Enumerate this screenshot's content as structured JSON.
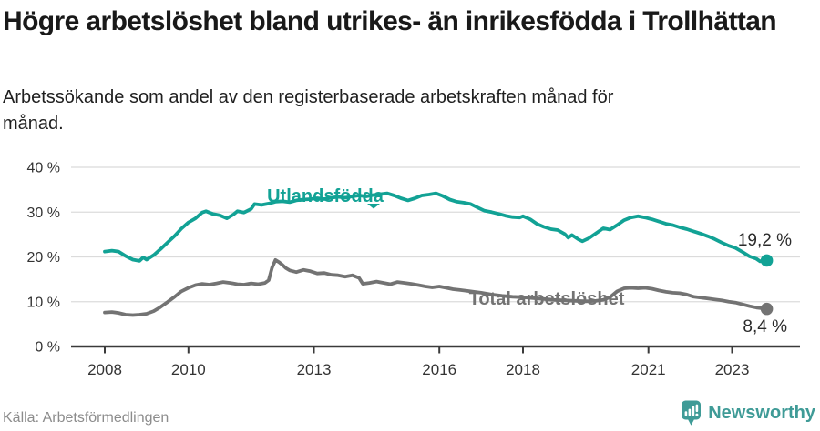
{
  "header": {
    "title": "Högre arbetslöshet bland utrikes- än inrikesfödda i Trollhättan",
    "subtitle_line1": "Arbetssökande som andel av den registerbaserade arbetskraften månad för",
    "subtitle_line2": "månad."
  },
  "footer": {
    "source": "Källa: Arbetsförmedlingen",
    "brand": "Newsworthy"
  },
  "colors": {
    "accent_teal": "#12a295",
    "series_gray": "#737373",
    "grid": "#dbdbdb",
    "axis": "#3a3a3a",
    "tick_text": "#333333",
    "value_text": "#2b2b2b",
    "muted_text": "#8c8c8c",
    "brand_teal": "#3f9b97"
  },
  "chart_data": {
    "type": "line",
    "title": "Högre arbetslöshet bland utrikes- än inrikesfödda i Trollhättan",
    "subtitle": "Arbetssökande som andel av den registerbaserade arbetskraften månad för månad.",
    "xlabel": "",
    "ylabel": "",
    "grid": "horizontal",
    "legend_position": "inline-labels",
    "x_axis": {
      "ticks": [
        2008,
        2010,
        2013,
        2016,
        2018,
        2021,
        2023
      ],
      "tick_labels": [
        "2008",
        "2010",
        "2013",
        "2016",
        "2018",
        "2021",
        "2023"
      ],
      "range": [
        2007.2,
        2024.6
      ]
    },
    "y_axis": {
      "ticks": [
        0,
        10,
        20,
        30,
        40
      ],
      "tick_labels": [
        "0 %",
        "10 %",
        "20 %",
        "30 %",
        "40 %"
      ],
      "range": [
        0,
        40
      ]
    },
    "series": [
      {
        "name": "Utlandsfödda",
        "color": "#12a295",
        "end_label": "19,2 %",
        "end_value": 19.2,
        "points": [
          [
            2008.0,
            21.2
          ],
          [
            2008.17,
            21.4
          ],
          [
            2008.33,
            21.2
          ],
          [
            2008.5,
            20.2
          ],
          [
            2008.67,
            19.4
          ],
          [
            2008.83,
            19.1
          ],
          [
            2008.92,
            19.9
          ],
          [
            2009.0,
            19.4
          ],
          [
            2009.17,
            20.4
          ],
          [
            2009.33,
            21.7
          ],
          [
            2009.5,
            23.2
          ],
          [
            2009.67,
            24.7
          ],
          [
            2009.83,
            26.3
          ],
          [
            2010.0,
            27.7
          ],
          [
            2010.17,
            28.6
          ],
          [
            2010.33,
            29.9
          ],
          [
            2010.42,
            30.2
          ],
          [
            2010.58,
            29.6
          ],
          [
            2010.75,
            29.3
          ],
          [
            2010.92,
            28.6
          ],
          [
            2011.08,
            29.5
          ],
          [
            2011.17,
            30.2
          ],
          [
            2011.33,
            29.9
          ],
          [
            2011.5,
            30.7
          ],
          [
            2011.58,
            31.8
          ],
          [
            2011.75,
            31.6
          ],
          [
            2011.92,
            31.9
          ],
          [
            2012.08,
            32.3
          ],
          [
            2012.25,
            32.4
          ],
          [
            2012.42,
            32.2
          ],
          [
            2012.58,
            32.6
          ],
          [
            2012.75,
            32.8
          ],
          [
            2012.92,
            32.9
          ],
          [
            2013.08,
            33.1
          ],
          [
            2013.25,
            32.9
          ],
          [
            2013.42,
            33.2
          ],
          [
            2013.58,
            33.4
          ],
          [
            2013.75,
            33.2
          ],
          [
            2013.92,
            33.5
          ],
          [
            2014.08,
            33.7
          ],
          [
            2014.25,
            33.5
          ],
          [
            2014.42,
            33.8
          ],
          [
            2014.58,
            34.0
          ],
          [
            2014.75,
            34.2
          ],
          [
            2014.92,
            33.7
          ],
          [
            2015.08,
            33.1
          ],
          [
            2015.25,
            32.6
          ],
          [
            2015.42,
            33.1
          ],
          [
            2015.58,
            33.7
          ],
          [
            2015.75,
            33.9
          ],
          [
            2015.92,
            34.2
          ],
          [
            2016.08,
            33.6
          ],
          [
            2016.25,
            32.8
          ],
          [
            2016.42,
            32.3
          ],
          [
            2016.58,
            32.1
          ],
          [
            2016.75,
            31.8
          ],
          [
            2016.92,
            31.0
          ],
          [
            2017.08,
            30.3
          ],
          [
            2017.25,
            30.0
          ],
          [
            2017.42,
            29.6
          ],
          [
            2017.58,
            29.2
          ],
          [
            2017.75,
            28.9
          ],
          [
            2017.92,
            28.8
          ],
          [
            2018.0,
            29.1
          ],
          [
            2018.17,
            28.4
          ],
          [
            2018.33,
            27.4
          ],
          [
            2018.5,
            26.7
          ],
          [
            2018.67,
            26.2
          ],
          [
            2018.83,
            26.0
          ],
          [
            2019.0,
            25.1
          ],
          [
            2019.08,
            24.3
          ],
          [
            2019.17,
            24.9
          ],
          [
            2019.33,
            23.9
          ],
          [
            2019.42,
            23.5
          ],
          [
            2019.58,
            24.2
          ],
          [
            2019.75,
            25.3
          ],
          [
            2019.92,
            26.4
          ],
          [
            2020.08,
            26.1
          ],
          [
            2020.25,
            27.1
          ],
          [
            2020.42,
            28.2
          ],
          [
            2020.58,
            28.8
          ],
          [
            2020.75,
            29.1
          ],
          [
            2020.92,
            28.8
          ],
          [
            2021.08,
            28.4
          ],
          [
            2021.25,
            27.9
          ],
          [
            2021.42,
            27.4
          ],
          [
            2021.58,
            27.1
          ],
          [
            2021.75,
            26.6
          ],
          [
            2021.92,
            26.2
          ],
          [
            2022.08,
            25.7
          ],
          [
            2022.25,
            25.2
          ],
          [
            2022.42,
            24.6
          ],
          [
            2022.58,
            24.0
          ],
          [
            2022.75,
            23.2
          ],
          [
            2022.92,
            22.5
          ],
          [
            2023.08,
            22.0
          ],
          [
            2023.25,
            21.1
          ],
          [
            2023.42,
            20.1
          ],
          [
            2023.58,
            19.6
          ],
          [
            2023.67,
            19.0
          ],
          [
            2023.83,
            19.2
          ]
        ]
      },
      {
        "name": "Total arbetslöshet",
        "color": "#737373",
        "end_label": "8,4 %",
        "end_value": 8.4,
        "points": [
          [
            2008.0,
            7.6
          ],
          [
            2008.17,
            7.7
          ],
          [
            2008.33,
            7.5
          ],
          [
            2008.5,
            7.1
          ],
          [
            2008.67,
            7.0
          ],
          [
            2008.83,
            7.1
          ],
          [
            2009.0,
            7.3
          ],
          [
            2009.17,
            7.9
          ],
          [
            2009.33,
            8.8
          ],
          [
            2009.5,
            9.9
          ],
          [
            2009.67,
            11.1
          ],
          [
            2009.83,
            12.3
          ],
          [
            2010.0,
            13.1
          ],
          [
            2010.17,
            13.7
          ],
          [
            2010.33,
            14.0
          ],
          [
            2010.5,
            13.8
          ],
          [
            2010.67,
            14.1
          ],
          [
            2010.83,
            14.4
          ],
          [
            2011.0,
            14.2
          ],
          [
            2011.17,
            13.9
          ],
          [
            2011.33,
            13.8
          ],
          [
            2011.5,
            14.1
          ],
          [
            2011.67,
            13.9
          ],
          [
            2011.83,
            14.2
          ],
          [
            2011.92,
            14.8
          ],
          [
            2012.0,
            17.6
          ],
          [
            2012.08,
            19.3
          ],
          [
            2012.17,
            18.8
          ],
          [
            2012.25,
            18.2
          ],
          [
            2012.33,
            17.5
          ],
          [
            2012.42,
            17.0
          ],
          [
            2012.58,
            16.6
          ],
          [
            2012.75,
            17.1
          ],
          [
            2012.92,
            16.8
          ],
          [
            2013.08,
            16.3
          ],
          [
            2013.25,
            16.4
          ],
          [
            2013.42,
            16.0
          ],
          [
            2013.58,
            15.9
          ],
          [
            2013.75,
            15.6
          ],
          [
            2013.92,
            15.9
          ],
          [
            2014.08,
            15.3
          ],
          [
            2014.17,
            14.0
          ],
          [
            2014.33,
            14.2
          ],
          [
            2014.5,
            14.5
          ],
          [
            2014.67,
            14.2
          ],
          [
            2014.83,
            13.9
          ],
          [
            2015.0,
            14.4
          ],
          [
            2015.17,
            14.2
          ],
          [
            2015.33,
            14.0
          ],
          [
            2015.5,
            13.7
          ],
          [
            2015.67,
            13.4
          ],
          [
            2015.83,
            13.2
          ],
          [
            2016.0,
            13.4
          ],
          [
            2016.17,
            13.1
          ],
          [
            2016.33,
            12.8
          ],
          [
            2016.5,
            12.6
          ],
          [
            2016.67,
            12.4
          ],
          [
            2016.83,
            12.2
          ],
          [
            2017.0,
            12.0
          ],
          [
            2017.25,
            11.6
          ],
          [
            2017.5,
            11.3
          ],
          [
            2017.75,
            11.1
          ],
          [
            2018.0,
            11.0
          ],
          [
            2018.25,
            10.8
          ],
          [
            2018.5,
            10.6
          ],
          [
            2018.75,
            10.4
          ],
          [
            2019.0,
            10.3
          ],
          [
            2019.25,
            10.2
          ],
          [
            2019.5,
            10.1
          ],
          [
            2019.75,
            10.2
          ],
          [
            2019.92,
            10.4
          ],
          [
            2020.08,
            11.0
          ],
          [
            2020.25,
            12.3
          ],
          [
            2020.42,
            13.0
          ],
          [
            2020.58,
            13.1
          ],
          [
            2020.75,
            13.0
          ],
          [
            2020.92,
            13.1
          ],
          [
            2021.08,
            12.9
          ],
          [
            2021.25,
            12.5
          ],
          [
            2021.42,
            12.2
          ],
          [
            2021.58,
            12.0
          ],
          [
            2021.75,
            11.9
          ],
          [
            2021.92,
            11.6
          ],
          [
            2022.08,
            11.1
          ],
          [
            2022.25,
            10.9
          ],
          [
            2022.42,
            10.7
          ],
          [
            2022.58,
            10.5
          ],
          [
            2022.75,
            10.3
          ],
          [
            2022.92,
            10.0
          ],
          [
            2023.08,
            9.8
          ],
          [
            2023.25,
            9.4
          ],
          [
            2023.42,
            9.0
          ],
          [
            2023.58,
            8.7
          ],
          [
            2023.83,
            8.4
          ]
        ]
      }
    ]
  }
}
